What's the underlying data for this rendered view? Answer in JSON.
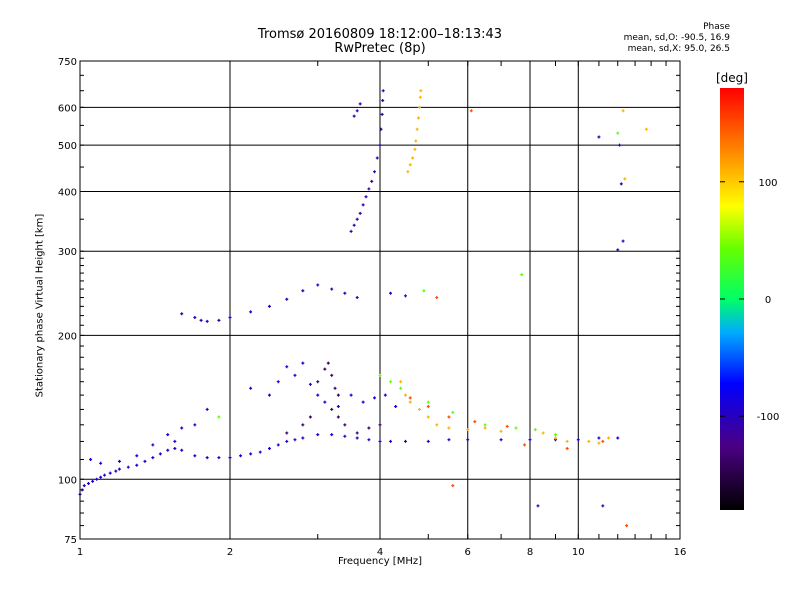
{
  "chart_data": {
    "type": "scatter",
    "title": "Tromsø 20160809 18:12:00–18:13:43",
    "subtitle": "RwPretec (8p)",
    "xlabel": "Frequency [MHz]",
    "ylabel": "Stationary phase Virtual Height [km]",
    "xscale": "log",
    "yscale": "log",
    "xlim": [
      1,
      16
    ],
    "ylim": [
      75,
      750
    ],
    "xticks": [
      1,
      2,
      4,
      6,
      8,
      10,
      16
    ],
    "xtick_labels": [
      "1",
      "2",
      "4",
      "6",
      "8",
      "10",
      "16"
    ],
    "yticks": [
      75,
      100,
      200,
      300,
      400,
      500,
      600,
      750
    ],
    "ytick_labels": [
      "75",
      "100",
      "200",
      "300",
      "400",
      "500",
      "600",
      "750"
    ],
    "grid": true,
    "phase_legend": {
      "heading": "Phase",
      "line_o": "mean, sd,O: -90.5, 16.9",
      "line_x": "mean, sd,X:  95.0, 26.5"
    },
    "colorbar": {
      "label": "[deg]",
      "range": [
        -180,
        180
      ],
      "ticks": [
        100,
        0,
        -100
      ],
      "tick_labels": [
        "100",
        "0",
        "-100"
      ]
    },
    "series": [
      {
        "color_value": -95,
        "points": [
          [
            1.0,
            93
          ],
          [
            1.01,
            95
          ],
          [
            1.02,
            97
          ],
          [
            1.04,
            98
          ],
          [
            1.06,
            99
          ],
          [
            1.08,
            100
          ],
          [
            1.1,
            101
          ],
          [
            1.12,
            102
          ],
          [
            1.15,
            103
          ],
          [
            1.18,
            104
          ],
          [
            1.2,
            105
          ],
          [
            1.25,
            106
          ],
          [
            1.3,
            107
          ],
          [
            1.35,
            109
          ],
          [
            1.4,
            111
          ],
          [
            1.45,
            113
          ],
          [
            1.5,
            115
          ],
          [
            1.55,
            116
          ],
          [
            1.6,
            115
          ],
          [
            1.7,
            112
          ],
          [
            1.8,
            111
          ],
          [
            1.9,
            111
          ],
          [
            2.0,
            111
          ],
          [
            2.1,
            112
          ],
          [
            2.2,
            113
          ],
          [
            2.3,
            114
          ],
          [
            2.4,
            116
          ],
          [
            2.5,
            118
          ],
          [
            2.6,
            120
          ],
          [
            2.7,
            121
          ],
          [
            2.8,
            122
          ],
          [
            3.0,
            124
          ],
          [
            3.2,
            124
          ],
          [
            3.4,
            123
          ],
          [
            3.6,
            122
          ],
          [
            3.8,
            121
          ],
          [
            4.0,
            120
          ],
          [
            4.2,
            120
          ],
          [
            4.5,
            120
          ],
          [
            5.0,
            120
          ],
          [
            5.5,
            121
          ],
          [
            6.0,
            121
          ],
          [
            7.0,
            121
          ],
          [
            8.0,
            121
          ],
          [
            9.0,
            121
          ],
          [
            10.0,
            121
          ],
          [
            11.0,
            122
          ],
          [
            12.0,
            122
          ]
        ]
      },
      {
        "color_value": -90,
        "points": [
          [
            1.05,
            110
          ],
          [
            1.1,
            108
          ],
          [
            1.2,
            109
          ],
          [
            1.3,
            112
          ],
          [
            1.4,
            118
          ],
          [
            1.5,
            124
          ],
          [
            1.55,
            120
          ],
          [
            1.6,
            128
          ],
          [
            1.7,
            130
          ],
          [
            1.8,
            140
          ],
          [
            2.2,
            155
          ],
          [
            2.4,
            150
          ],
          [
            2.5,
            160
          ],
          [
            2.6,
            172
          ],
          [
            2.7,
            165
          ],
          [
            2.8,
            175
          ],
          [
            2.9,
            158
          ],
          [
            3.0,
            150
          ],
          [
            3.1,
            145
          ],
          [
            3.3,
            142
          ],
          [
            3.5,
            150
          ],
          [
            3.7,
            145
          ],
          [
            3.9,
            148
          ],
          [
            4.1,
            150
          ],
          [
            4.3,
            142
          ]
        ]
      },
      {
        "color_value": -100,
        "points": [
          [
            1.6,
            222
          ],
          [
            1.7,
            218
          ],
          [
            1.75,
            215
          ],
          [
            1.8,
            214
          ],
          [
            1.9,
            215
          ],
          [
            2.0,
            218
          ],
          [
            2.2,
            224
          ],
          [
            2.4,
            230
          ],
          [
            2.6,
            238
          ],
          [
            2.8,
            248
          ],
          [
            3.0,
            255
          ],
          [
            3.2,
            250
          ],
          [
            3.4,
            245
          ],
          [
            3.6,
            240
          ],
          [
            4.2,
            245
          ],
          [
            4.5,
            242
          ]
        ]
      },
      {
        "color_value": -110,
        "points": [
          [
            3.5,
            330
          ],
          [
            3.55,
            340
          ],
          [
            3.6,
            350
          ],
          [
            3.65,
            360
          ],
          [
            3.7,
            375
          ],
          [
            3.75,
            390
          ],
          [
            3.8,
            405
          ],
          [
            3.85,
            420
          ],
          [
            3.9,
            440
          ],
          [
            3.95,
            470
          ],
          [
            4.0,
            500
          ],
          [
            4.02,
            540
          ],
          [
            4.04,
            580
          ],
          [
            4.05,
            620
          ],
          [
            4.06,
            650
          ],
          [
            3.55,
            575
          ],
          [
            3.6,
            590
          ],
          [
            3.65,
            610
          ]
        ]
      },
      {
        "color_value": 110,
        "points": [
          [
            4.55,
            440
          ],
          [
            4.6,
            455
          ],
          [
            4.65,
            470
          ],
          [
            4.7,
            490
          ],
          [
            4.72,
            510
          ],
          [
            4.75,
            540
          ],
          [
            4.78,
            570
          ],
          [
            4.8,
            600
          ],
          [
            4.82,
            630
          ],
          [
            4.83,
            650
          ]
        ]
      },
      {
        "color_value": -140,
        "points": [
          [
            3.0,
            160
          ],
          [
            3.1,
            170
          ],
          [
            3.15,
            175
          ],
          [
            3.2,
            165
          ],
          [
            3.25,
            155
          ],
          [
            3.3,
            150
          ],
          [
            3.2,
            140
          ],
          [
            3.3,
            135
          ],
          [
            3.4,
            130
          ],
          [
            3.6,
            125
          ],
          [
            3.8,
            128
          ],
          [
            4.0,
            130
          ],
          [
            2.9,
            135
          ],
          [
            2.8,
            130
          ],
          [
            2.6,
            125
          ]
        ]
      },
      {
        "color_value": 110,
        "points": [
          [
            4.4,
            160
          ],
          [
            4.5,
            150
          ],
          [
            4.6,
            145
          ],
          [
            4.8,
            140
          ],
          [
            5.0,
            135
          ],
          [
            5.2,
            130
          ],
          [
            5.5,
            128
          ],
          [
            6.0,
            127
          ],
          [
            6.5,
            128
          ],
          [
            7.0,
            126
          ],
          [
            8.5,
            125
          ],
          [
            9.0,
            122
          ],
          [
            9.5,
            120
          ],
          [
            10.5,
            120
          ],
          [
            11.0,
            119
          ],
          [
            11.5,
            122
          ],
          [
            12.3,
            590
          ],
          [
            13.7,
            540
          ],
          [
            12.4,
            425
          ]
        ]
      },
      {
        "color_value": 40,
        "points": [
          [
            4.0,
            165
          ],
          [
            4.2,
            160
          ],
          [
            4.4,
            155
          ],
          [
            5.0,
            145
          ],
          [
            5.6,
            138
          ],
          [
            6.5,
            130
          ],
          [
            7.5,
            128
          ],
          [
            8.2,
            127
          ],
          [
            9.0,
            124
          ],
          [
            4.9,
            248
          ],
          [
            1.9,
            135
          ],
          [
            7.7,
            268
          ],
          [
            12.0,
            530
          ]
        ]
      },
      {
        "color_value": 150,
        "points": [
          [
            4.6,
            148
          ],
          [
            5.0,
            142
          ],
          [
            5.5,
            135
          ],
          [
            6.2,
            132
          ],
          [
            7.2,
            129
          ],
          [
            7.8,
            118
          ],
          [
            9.5,
            116
          ],
          [
            11.2,
            120
          ],
          [
            12.5,
            80
          ],
          [
            5.6,
            97
          ],
          [
            6.1,
            590
          ],
          [
            5.2,
            240
          ]
        ]
      },
      {
        "color_value": -100,
        "points": [
          [
            11.0,
            520
          ],
          [
            12.1,
            500
          ],
          [
            12.2,
            415
          ],
          [
            12.3,
            315
          ],
          [
            12.0,
            302
          ],
          [
            11.2,
            88
          ],
          [
            8.3,
            88
          ]
        ]
      }
    ]
  }
}
